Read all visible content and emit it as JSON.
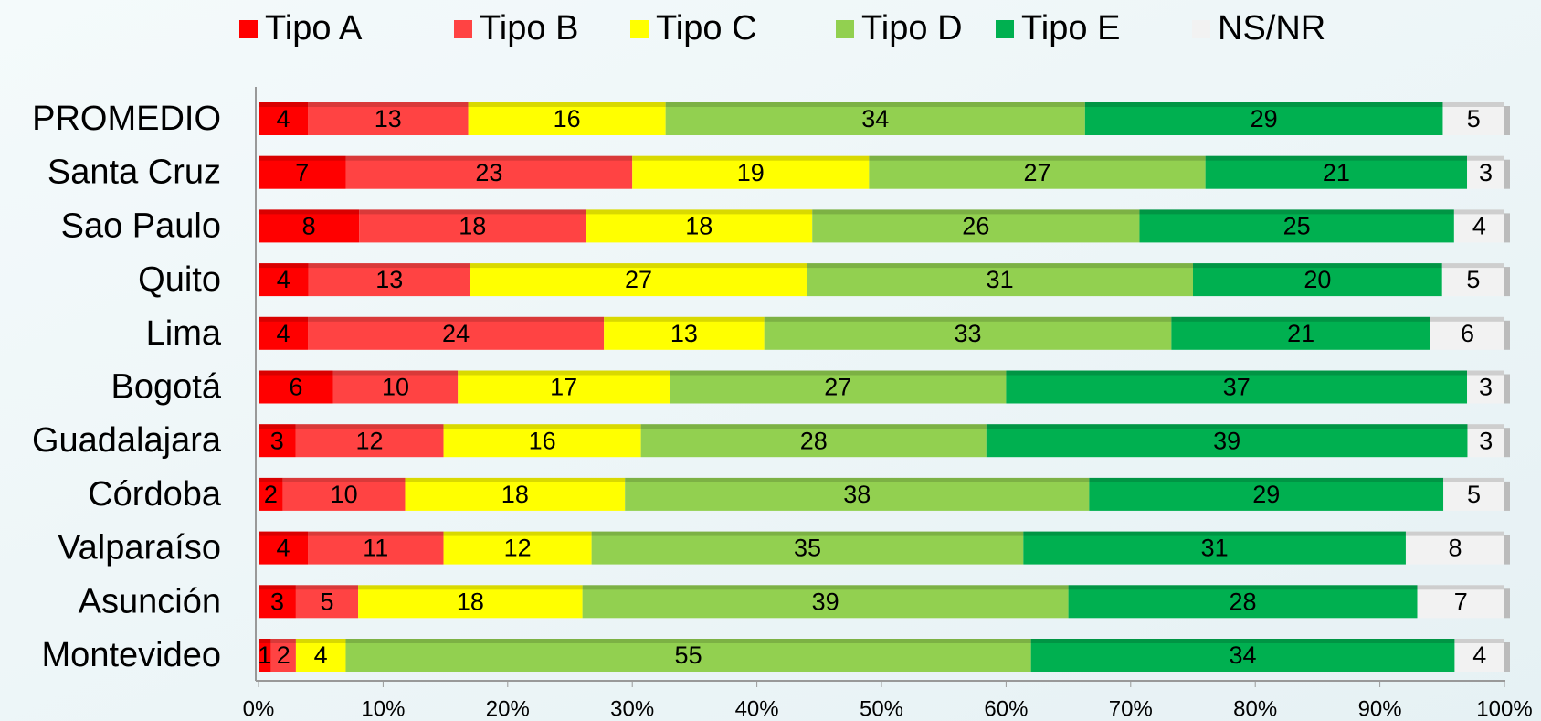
{
  "chart_data": {
    "type": "stacked_bar_percent",
    "categories": [
      "PROMEDIO",
      "Santa Cruz",
      "Sao Paulo",
      "Quito",
      "Lima",
      "Bogotá",
      "Guadalajara",
      "Córdoba",
      "Valparaíso",
      "Asunción",
      "Montevideo"
    ],
    "series": [
      {
        "name": "Tipo A",
        "color": "#ff0000",
        "values": [
          4,
          7,
          8,
          4,
          4,
          6,
          3,
          2,
          4,
          3,
          1
        ]
      },
      {
        "name": "Tipo B",
        "color": "#ff4343",
        "values": [
          13,
          23,
          18,
          13,
          24,
          10,
          12,
          10,
          11,
          5,
          2
        ]
      },
      {
        "name": "Tipo C",
        "color": "#ffff00",
        "values": [
          16,
          19,
          18,
          27,
          13,
          17,
          16,
          18,
          12,
          18,
          4
        ]
      },
      {
        "name": "Tipo D",
        "color": "#92d050",
        "values": [
          34,
          27,
          26,
          31,
          33,
          27,
          28,
          38,
          35,
          39,
          55
        ]
      },
      {
        "name": "Tipo E",
        "color": "#00b050",
        "values": [
          29,
          21,
          25,
          20,
          21,
          37,
          39,
          29,
          31,
          28,
          34
        ]
      },
      {
        "name": "NS/NR",
        "color": "#f2f2f2",
        "values": [
          5,
          3,
          4,
          5,
          6,
          3,
          3,
          5,
          8,
          7,
          4
        ]
      }
    ],
    "xlim": [
      0,
      100
    ],
    "xticks": [
      {
        "value": 0,
        "label": "0%"
      },
      {
        "value": 10,
        "label": "10%"
      },
      {
        "value": 20,
        "label": "20%"
      },
      {
        "value": 30,
        "label": "30%"
      },
      {
        "value": 40,
        "label": "40%"
      },
      {
        "value": 50,
        "label": "50%"
      },
      {
        "value": 60,
        "label": "60%"
      },
      {
        "value": 70,
        "label": "70%"
      },
      {
        "value": 80,
        "label": "80%"
      },
      {
        "value": 90,
        "label": "90%"
      },
      {
        "value": 100,
        "label": "100%"
      }
    ],
    "legend": "top"
  }
}
